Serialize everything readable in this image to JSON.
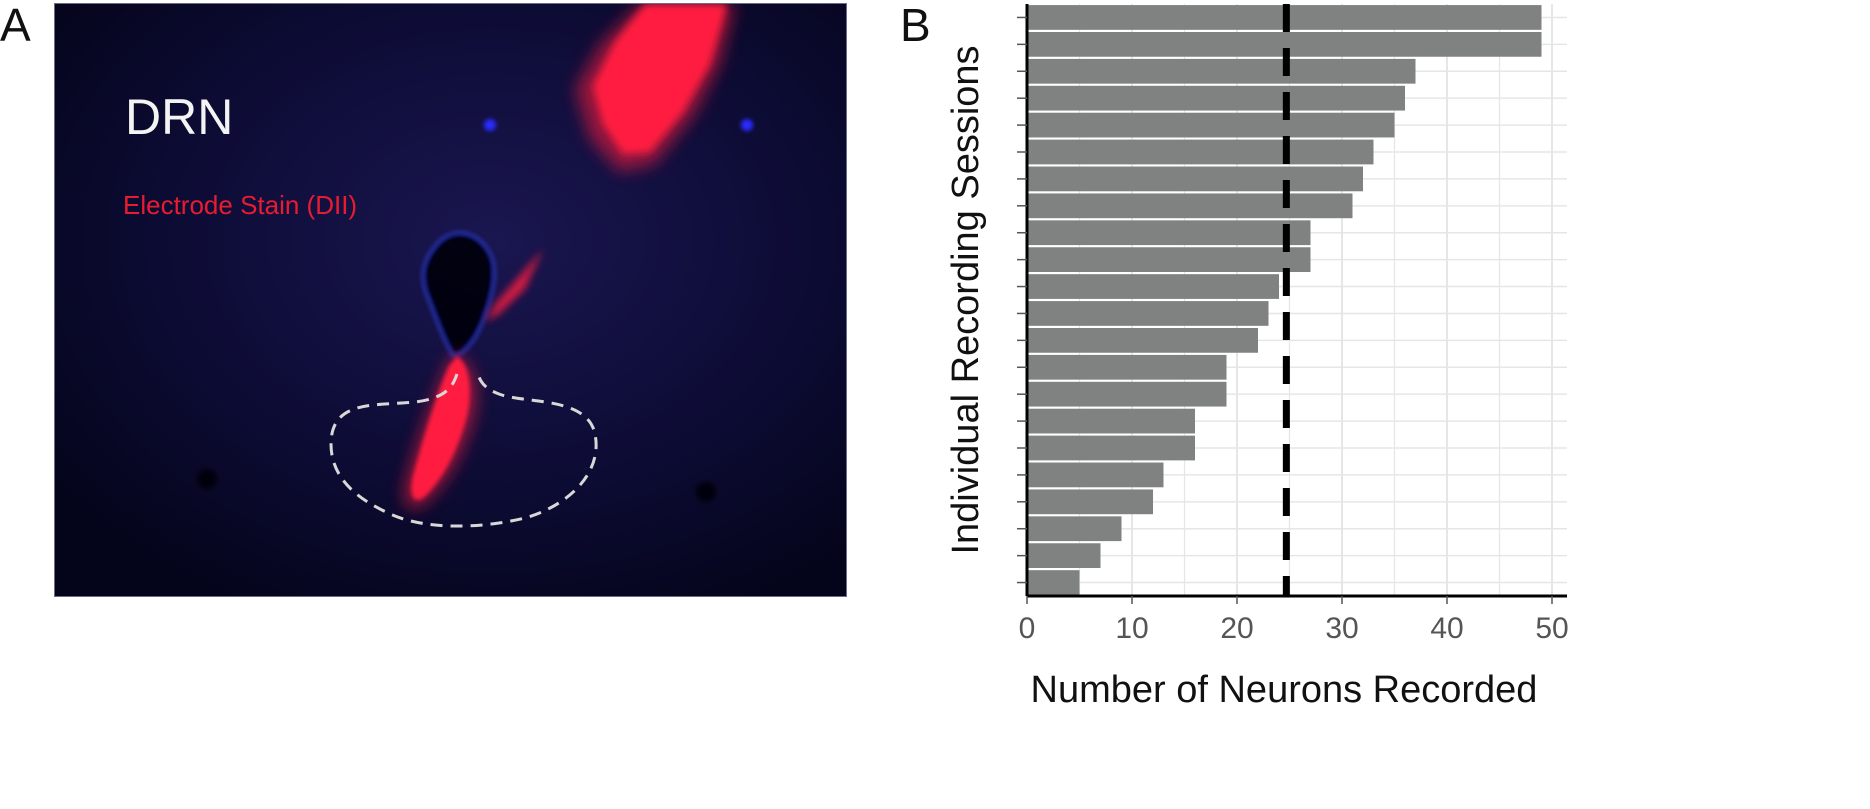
{
  "panels": {
    "a_letter": "A",
    "b_letter": "B"
  },
  "micrograph": {
    "region_label": "DRN",
    "stain_label": "Electrode Stain (DII)",
    "colors": {
      "background": "#07071f",
      "stain": "#ff1a3c",
      "label_region": "#f4f4f4",
      "label_stain": "#e81c30",
      "outline": "#d8d8d8"
    }
  },
  "chart_data": {
    "type": "bar",
    "orientation": "horizontal",
    "xlabel": "Number of Neurons Recorded",
    "ylabel": "Individual Recording Sessions",
    "xlim": [
      0,
      50
    ],
    "xticks": [
      "0",
      "10",
      "20",
      "30",
      "40",
      "50"
    ],
    "values": [
      49,
      49,
      37,
      36,
      35,
      33,
      32,
      31,
      27,
      27,
      24,
      23,
      22,
      19,
      19,
      16,
      16,
      13,
      12,
      9,
      7,
      5
    ],
    "reference_line": {
      "x": 24.7,
      "style": "dashed"
    },
    "grid": true,
    "colors": {
      "bar": "#808282",
      "reference_line": "#000000",
      "grid": "#e6e6e6",
      "axis": "#000000",
      "tick_label": "#555555"
    }
  }
}
